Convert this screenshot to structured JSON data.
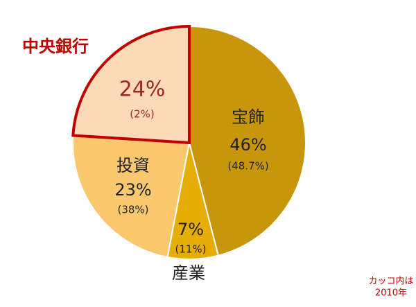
{
  "chart_data": {
    "type": "pie",
    "categories": [
      "宝飾",
      "産業",
      "投資",
      "中央銀行"
    ],
    "values": [
      46,
      7,
      23,
      24
    ],
    "value_labels": [
      "46%",
      "7%",
      "23%",
      "24%"
    ],
    "prior_value_labels": [
      "(48.7%)",
      "(11%)",
      "(38%)",
      "(2%)"
    ],
    "colors": [
      "#c8960a",
      "#e6ad06",
      "#fac96f",
      "#fcd9b9"
    ],
    "highlight": 3,
    "highlight_color": "#c00000",
    "note": [
      "カッコ内は",
      "2010年"
    ]
  }
}
